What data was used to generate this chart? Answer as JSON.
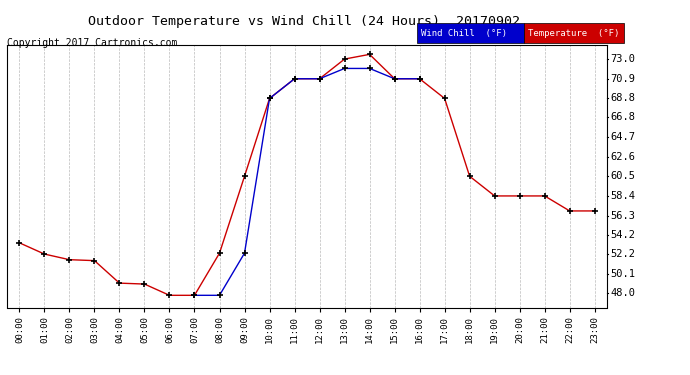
{
  "title": "Outdoor Temperature vs Wind Chill (24 Hours)  20170902",
  "copyright": "Copyright 2017 Cartronics.com",
  "hours": [
    "00:00",
    "01:00",
    "02:00",
    "03:00",
    "04:00",
    "05:00",
    "06:00",
    "07:00",
    "08:00",
    "09:00",
    "10:00",
    "11:00",
    "12:00",
    "13:00",
    "14:00",
    "15:00",
    "16:00",
    "17:00",
    "18:00",
    "19:00",
    "20:00",
    "21:00",
    "22:00",
    "23:00"
  ],
  "temperature": [
    53.4,
    52.2,
    51.6,
    51.5,
    49.1,
    49.0,
    47.8,
    47.8,
    52.3,
    60.5,
    68.8,
    70.9,
    70.9,
    73.0,
    73.5,
    70.9,
    70.9,
    68.8,
    60.5,
    58.4,
    58.4,
    58.4,
    56.8,
    56.8
  ],
  "wind_chill": [
    null,
    null,
    null,
    null,
    null,
    null,
    null,
    47.8,
    47.8,
    52.3,
    68.8,
    70.9,
    70.9,
    72.0,
    72.0,
    70.9,
    70.9,
    null,
    null,
    null,
    null,
    null,
    null,
    null
  ],
  "temp_color": "#cc0000",
  "wind_color": "#0000cc",
  "yticks": [
    48.0,
    50.1,
    52.2,
    54.2,
    56.3,
    58.4,
    60.5,
    62.6,
    64.7,
    66.8,
    68.8,
    70.9,
    73.0
  ],
  "ylim": [
    46.5,
    74.5
  ],
  "background_color": "#ffffff",
  "plot_bg": "#ffffff",
  "grid_color": "#aaaaaa",
  "legend_wind_bg": "#0000cc",
  "legend_temp_bg": "#cc0000",
  "legend_text": "Wind Chill  (°F)",
  "legend_text2": "Temperature  (°F)"
}
